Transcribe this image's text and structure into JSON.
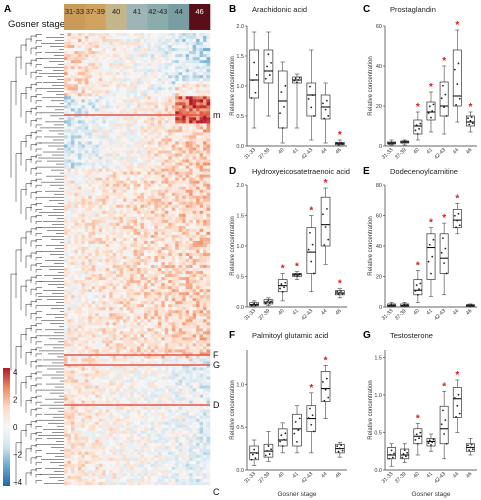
{
  "figure": {
    "panel_letters": [
      "A",
      "B",
      "C",
      "D",
      "E",
      "F",
      "G"
    ],
    "gosner_stage_title": "Gosner stage",
    "stage_labels": [
      "31-33",
      "37-39",
      "40",
      "41",
      "42-43",
      "44",
      "46"
    ],
    "stage_colors": [
      "#c99a58",
      "#d1a160",
      "#c5b68a",
      "#9fb4b7",
      "#8aacad",
      "#7a9da2",
      "#5a0e18"
    ],
    "row_markers": [
      "m",
      "F",
      "G",
      "D",
      "C"
    ],
    "colorbar_ticks": [
      "4",
      "2",
      "0",
      "−2",
      "−4"
    ],
    "colorbar_stops": [
      "#b2182b",
      "#ef8a62",
      "#fddbc7",
      "#f7f7f7",
      "#d1e5f0",
      "#67a9cf",
      "#2166ac"
    ],
    "highlight_color": "#e6554a",
    "significance_color": "#d7191c"
  },
  "chart_data": [
    {
      "type": "heatmap",
      "panel": "A",
      "title": "Gosner stage",
      "columns": [
        "31-33",
        "37-39",
        "40",
        "41",
        "42-43",
        "44",
        "46"
      ],
      "colorbar": [
        -4,
        4
      ],
      "highlighted_rows": [
        "m",
        "F",
        "G",
        "D",
        "C"
      ]
    },
    {
      "type": "box",
      "panel": "B",
      "title": "Arachidonic acid",
      "ylabel": "Relative concentration",
      "xlabel": "",
      "categories": [
        "31-33",
        "37-39",
        "40",
        "41",
        "42-43",
        "44",
        "46"
      ],
      "ylim": [
        0,
        2.0
      ],
      "yticks": [
        0.0,
        0.5,
        1.0,
        1.5,
        2.0
      ],
      "boxes": [
        {
          "min": 0.3,
          "q1": 0.8,
          "median": 1.1,
          "q3": 1.6,
          "max": 1.9
        },
        {
          "min": 0.5,
          "q1": 1.05,
          "median": 1.25,
          "q3": 1.6,
          "max": 1.9
        },
        {
          "min": 0.05,
          "q1": 0.3,
          "median": 0.75,
          "q3": 1.25,
          "max": 1.4
        },
        {
          "min": 0.3,
          "q1": 1.05,
          "median": 1.1,
          "q3": 1.15,
          "max": 1.2
        },
        {
          "min": 0.1,
          "q1": 0.5,
          "median": 0.85,
          "q3": 1.05,
          "max": 1.6
        },
        {
          "min": 0.05,
          "q1": 0.45,
          "median": 0.65,
          "q3": 0.85,
          "max": 1.05
        },
        {
          "min": 0.0,
          "q1": 0.02,
          "median": 0.04,
          "q3": 0.06,
          "max": 0.1
        }
      ],
      "significant": [
        false,
        false,
        false,
        false,
        false,
        false,
        true
      ]
    },
    {
      "type": "box",
      "panel": "C",
      "title": "Prostaglandin",
      "ylabel": "Relative concentration",
      "xlabel": "",
      "categories": [
        "31-33",
        "37-39",
        "40",
        "41",
        "42-43",
        "44",
        "46"
      ],
      "ylim": [
        0,
        60
      ],
      "yticks": [
        0,
        20,
        40,
        60
      ],
      "boxes": [
        {
          "min": 0.5,
          "q1": 1,
          "median": 1.5,
          "q3": 2,
          "max": 3
        },
        {
          "min": 0.5,
          "q1": 1.5,
          "median": 2,
          "q3": 2.5,
          "max": 3
        },
        {
          "min": 3,
          "q1": 6,
          "median": 10,
          "q3": 13,
          "max": 17
        },
        {
          "min": 7,
          "q1": 13,
          "median": 17,
          "q3": 22,
          "max": 27
        },
        {
          "min": 6,
          "q1": 15,
          "median": 20,
          "q3": 32,
          "max": 40
        },
        {
          "min": 12,
          "q1": 20,
          "median": 25,
          "q3": 48,
          "max": 58
        },
        {
          "min": 7,
          "q1": 10,
          "median": 12,
          "q3": 15,
          "max": 17
        }
      ],
      "significant": [
        false,
        false,
        true,
        true,
        true,
        true,
        true
      ]
    },
    {
      "type": "box",
      "panel": "D",
      "title": "Hydroxyeicosatetraenoic acid",
      "ylabel": "Relative concentration",
      "xlabel": "",
      "categories": [
        "31-33",
        "37-39",
        "40",
        "41",
        "42-43",
        "44",
        "46"
      ],
      "ylim": [
        0,
        2.0
      ],
      "yticks": [
        0.0,
        0.5,
        1.0,
        1.5,
        2.0
      ],
      "boxes": [
        {
          "min": 0.0,
          "q1": 0.02,
          "median": 0.04,
          "q3": 0.07,
          "max": 0.1
        },
        {
          "min": 0.02,
          "q1": 0.05,
          "median": 0.08,
          "q3": 0.12,
          "max": 0.15
        },
        {
          "min": 0.1,
          "q1": 0.25,
          "median": 0.35,
          "q3": 0.45,
          "max": 0.55
        },
        {
          "min": 0.45,
          "q1": 0.5,
          "median": 0.53,
          "q3": 0.55,
          "max": 0.58
        },
        {
          "min": 0.25,
          "q1": 0.55,
          "median": 0.9,
          "q3": 1.3,
          "max": 1.5
        },
        {
          "min": 0.7,
          "q1": 1.0,
          "median": 1.35,
          "q3": 1.8,
          "max": 1.95
        },
        {
          "min": 0.15,
          "q1": 0.2,
          "median": 0.23,
          "q3": 0.27,
          "max": 0.3
        }
      ],
      "significant": [
        false,
        false,
        true,
        true,
        true,
        true,
        true
      ]
    },
    {
      "type": "box",
      "panel": "E",
      "title": "Dodecenoylcarnitine",
      "ylabel": "Relative concentration",
      "xlabel": "",
      "categories": [
        "31-33",
        "37-39",
        "40",
        "41",
        "42-43",
        "44",
        "46"
      ],
      "ylim": [
        0,
        80
      ],
      "yticks": [
        0,
        20,
        40,
        60,
        80
      ],
      "boxes": [
        {
          "min": 0,
          "q1": 0.5,
          "median": 1,
          "q3": 2,
          "max": 3
        },
        {
          "min": 0,
          "q1": 0.5,
          "median": 1,
          "q3": 2,
          "max": 3
        },
        {
          "min": 3,
          "q1": 8,
          "median": 11,
          "q3": 18,
          "max": 24
        },
        {
          "min": 7,
          "q1": 18,
          "median": 39,
          "q3": 48,
          "max": 52
        },
        {
          "min": 8,
          "q1": 22,
          "median": 32,
          "q3": 48,
          "max": 55
        },
        {
          "min": 48,
          "q1": 52,
          "median": 57,
          "q3": 64,
          "max": 68
        },
        {
          "min": 0,
          "q1": 0.5,
          "median": 1,
          "q3": 1.5,
          "max": 2
        }
      ],
      "significant": [
        false,
        false,
        true,
        true,
        true,
        true,
        false
      ]
    },
    {
      "type": "box",
      "panel": "F",
      "title": "Palmitoyl glutamic acid",
      "ylabel": "Relative concentration",
      "xlabel": "Gosner stage",
      "categories": [
        "31-33",
        "37-39",
        "40",
        "41",
        "42-43",
        "44",
        "46"
      ],
      "ylim": [
        0,
        1.4
      ],
      "yticks": [
        0.0,
        0.5,
        1.0
      ],
      "boxes": [
        {
          "min": 0.05,
          "q1": 0.12,
          "median": 0.2,
          "q3": 0.28,
          "max": 0.35
        },
        {
          "min": 0.1,
          "q1": 0.15,
          "median": 0.22,
          "q3": 0.3,
          "max": 0.45
        },
        {
          "min": 0.2,
          "q1": 0.28,
          "median": 0.35,
          "q3": 0.48,
          "max": 0.55
        },
        {
          "min": 0.2,
          "q1": 0.28,
          "median": 0.48,
          "q3": 0.65,
          "max": 0.75
        },
        {
          "min": 0.2,
          "q1": 0.45,
          "median": 0.6,
          "q3": 0.75,
          "max": 0.9
        },
        {
          "min": 0.6,
          "q1": 0.8,
          "median": 0.95,
          "q3": 1.15,
          "max": 1.22
        },
        {
          "min": 0.15,
          "q1": 0.2,
          "median": 0.25,
          "q3": 0.3,
          "max": 0.32
        }
      ],
      "significant": [
        false,
        false,
        false,
        false,
        true,
        true,
        false
      ]
    },
    {
      "type": "box",
      "panel": "G",
      "title": "Testosterone",
      "ylabel": "Relative concentration",
      "xlabel": "Gosner stage",
      "categories": [
        "31-33",
        "37-39",
        "40",
        "41",
        "42-43",
        "44",
        "46"
      ],
      "ylim": [
        0,
        1.6
      ],
      "yticks": [
        0.0,
        0.5,
        1.0,
        1.5
      ],
      "boxes": [
        {
          "min": 0.05,
          "q1": 0.15,
          "median": 0.2,
          "q3": 0.3,
          "max": 0.35
        },
        {
          "min": 0.1,
          "q1": 0.15,
          "median": 0.2,
          "q3": 0.28,
          "max": 0.35
        },
        {
          "min": 0.2,
          "q1": 0.35,
          "median": 0.45,
          "q3": 0.55,
          "max": 0.62
        },
        {
          "min": 0.25,
          "q1": 0.32,
          "median": 0.38,
          "q3": 0.42,
          "max": 0.48
        },
        {
          "min": 0.15,
          "q1": 0.35,
          "median": 0.55,
          "q3": 0.85,
          "max": 1.05
        },
        {
          "min": 0.5,
          "q1": 0.7,
          "median": 0.95,
          "q3": 1.1,
          "max": 1.2
        },
        {
          "min": 0.2,
          "q1": 0.25,
          "median": 0.3,
          "q3": 0.35,
          "max": 0.42
        }
      ],
      "significant": [
        false,
        false,
        true,
        false,
        true,
        true,
        false
      ]
    }
  ]
}
